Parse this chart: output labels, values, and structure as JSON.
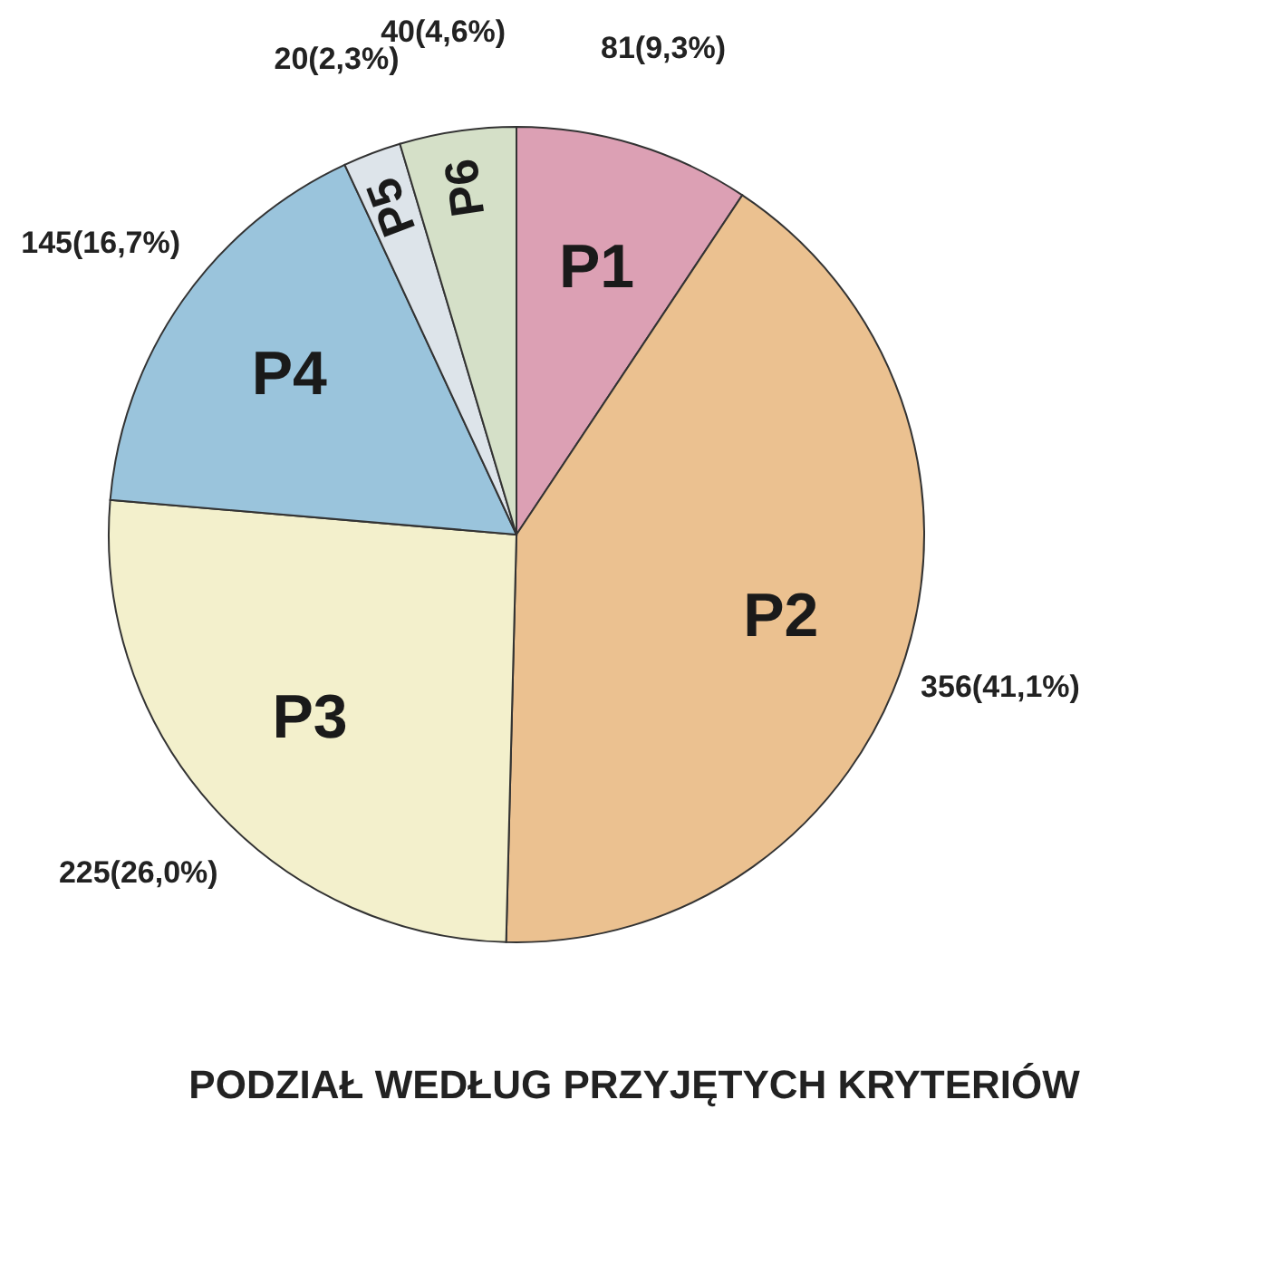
{
  "chart_data": {
    "type": "pie",
    "title": "PODZIAŁ WEDŁUG PRZYJĘTYCH KRYTERIÓW",
    "categories": [
      "P1",
      "P2",
      "P3",
      "P4",
      "P5",
      "P6"
    ],
    "values": [
      81,
      356,
      225,
      145,
      20,
      40
    ],
    "value_labels": [
      "81(9,3%)",
      "356(41,1%)",
      "225(26,0%)",
      "145(16,7%)",
      "20(2,3%)",
      "40(4,6%)"
    ],
    "colors": [
      "#dca0b4",
      "#ebc190",
      "#f3f0cc",
      "#9ac4dc",
      "#dde4ea",
      "#d5e0c8"
    ],
    "legend": false
  }
}
